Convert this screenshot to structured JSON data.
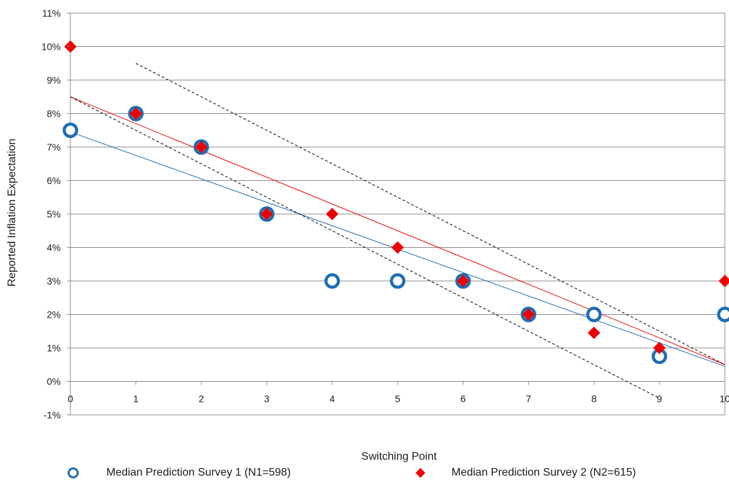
{
  "chart_data": {
    "type": "scatter",
    "xlabel": "Switching Point",
    "ylabel": "Reported Inflation Expectation",
    "xlim": [
      0,
      10
    ],
    "ylim": [
      -1,
      11
    ],
    "x_ticks": [
      "0",
      "1",
      "2",
      "3",
      "4",
      "5",
      "6",
      "7",
      "8",
      "9",
      "10"
    ],
    "y_ticks": [
      "-1%",
      "0%",
      "1%",
      "2%",
      "3%",
      "4%",
      "5%",
      "6%",
      "7%",
      "8%",
      "9%",
      "10%",
      "11%"
    ],
    "grid": "horizontal",
    "legend_position": "bottom",
    "series": [
      {
        "name": "Median Prediction Survey 1 (N1=598)",
        "marker": "open-circle",
        "color": "#1f6db3",
        "x": [
          0,
          1,
          2,
          3,
          4,
          5,
          6,
          7,
          8,
          9,
          10
        ],
        "y": [
          7.5,
          8,
          7,
          5,
          3,
          3,
          3,
          2,
          2,
          0.75,
          2
        ]
      },
      {
        "name": "Median Prediction Survey 2 (N2=615)",
        "marker": "diamond",
        "color": "#ee0000",
        "x": [
          0,
          1,
          2,
          3,
          4,
          5,
          6,
          7,
          8,
          9,
          10
        ],
        "y": [
          10,
          8,
          7,
          5,
          5,
          4,
          3,
          2,
          1.45,
          1,
          3
        ]
      }
    ],
    "trendlines": [
      {
        "color": "#1f6db3",
        "style": "solid",
        "x": [
          0,
          10
        ],
        "y": [
          7.45,
          0.45
        ]
      },
      {
        "color": "#ee0000",
        "style": "solid",
        "x": [
          0,
          10
        ],
        "y": [
          8.5,
          0.5
        ]
      },
      {
        "color": "#000000",
        "style": "dashed",
        "x": [
          0,
          9
        ],
        "y": [
          8.5,
          -0.5
        ]
      },
      {
        "color": "#000000",
        "style": "dashed",
        "x": [
          1,
          10
        ],
        "y": [
          9.5,
          0.5
        ]
      }
    ]
  }
}
